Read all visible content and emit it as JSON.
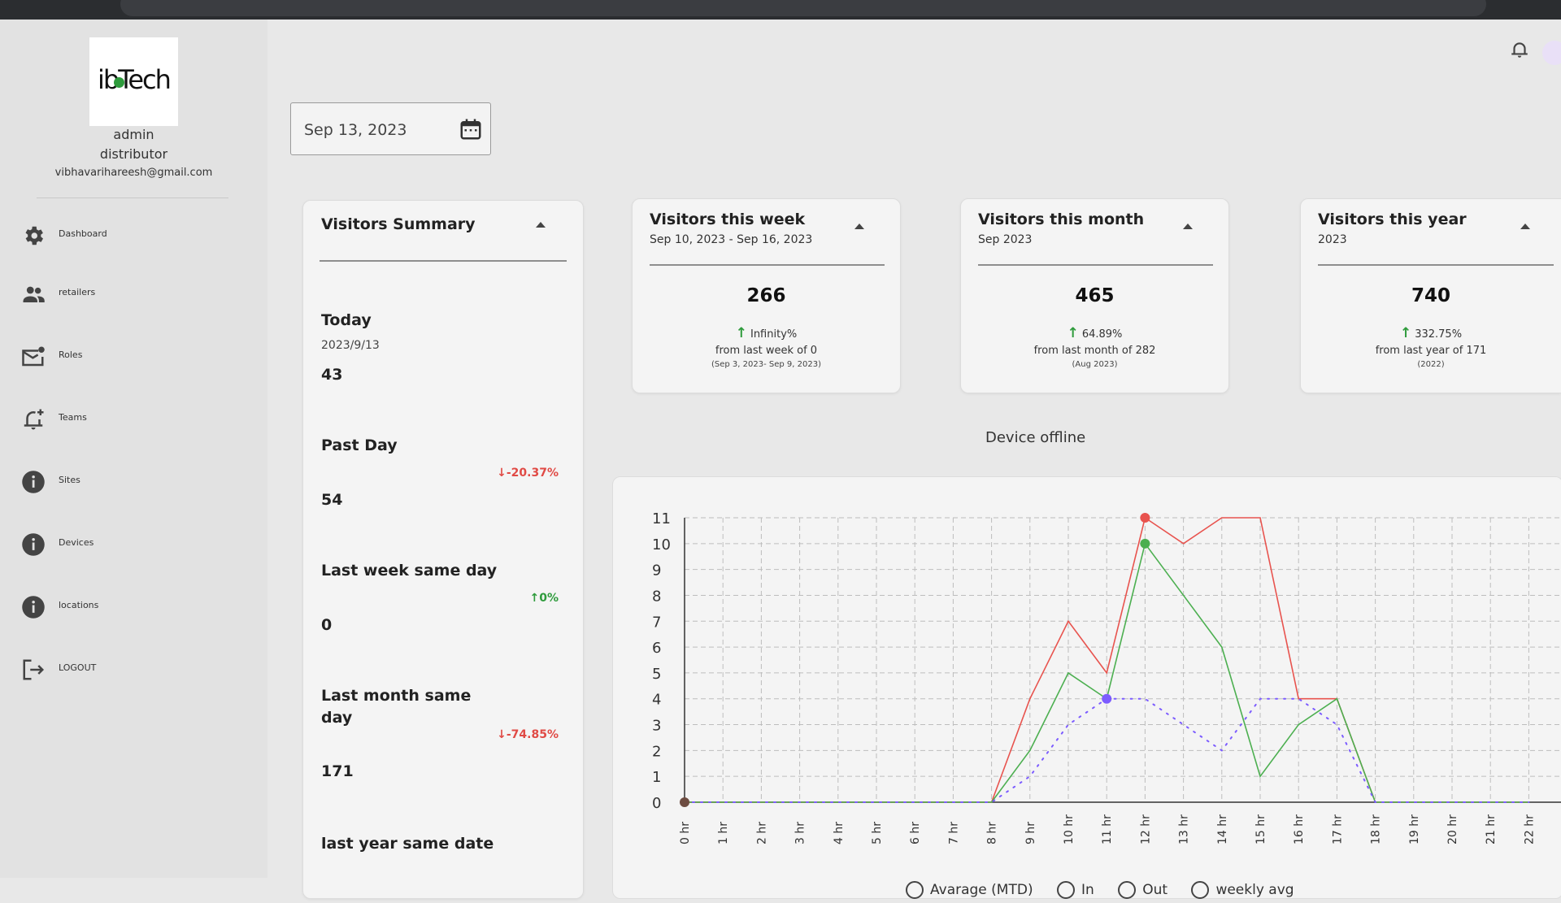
{
  "sidebar": {
    "logo_text": "ibTech",
    "user_name": "admin",
    "user_role": "distributor",
    "user_email": "vibhavarihareesh@gmail.com",
    "items": [
      {
        "label": "Dashboard",
        "icon": "gear-icon"
      },
      {
        "label": "retailers",
        "icon": "people-icon"
      },
      {
        "label": "Roles",
        "icon": "mail-badge-icon"
      },
      {
        "label": "Teams",
        "icon": "bell-plus-icon"
      },
      {
        "label": "Sites",
        "icon": "info-icon"
      },
      {
        "label": "Devices",
        "icon": "info-icon"
      },
      {
        "label": "locations",
        "icon": "info-icon"
      },
      {
        "label": "LOGOUT",
        "icon": "logout-icon"
      }
    ]
  },
  "header": {
    "date_value": "Sep 13, 2023",
    "notification_icon": "bell-icon"
  },
  "summary": {
    "title": "Visitors Summary",
    "today_label": "Today",
    "today_date": "2023/9/13",
    "today_value": "43",
    "past_day_label": "Past Day",
    "past_day_pct": "-20.37%",
    "past_day_value": "54",
    "last_week_label": "Last week same day",
    "last_week_pct": "0%",
    "last_week_value": "0",
    "last_month_label_1": "Last month same",
    "last_month_label_2": "day",
    "last_month_pct": "-74.85%",
    "last_month_value": "171",
    "last_year_label": "last year same date"
  },
  "week": {
    "title": "Visitors this week",
    "range": "Sep 10, 2023 - Sep 16, 2023",
    "value": "266",
    "pct": "Infinity%",
    "from": "from last week of  0",
    "prev_range": "(Sep 3, 2023- Sep 9, 2023)"
  },
  "month": {
    "title": "Visitors this month",
    "range": "Sep 2023",
    "value": "465",
    "pct": "64.89%",
    "from": "from last month of 282",
    "prev_range": "(Aug 2023)"
  },
  "year": {
    "title": "Visitors this year",
    "range": "2023",
    "value": "740",
    "pct": "332.75%",
    "from": "from last year of 171",
    "prev_range": "(2022)"
  },
  "chart_title": "Device offline",
  "legend": {
    "average": "Avarage (MTD)",
    "in": "In",
    "out": "Out",
    "weekly": "weekly avg"
  },
  "colors": {
    "in": "#4caf50",
    "out": "#e8534e",
    "average": "#7c5cff",
    "dot": "#6d4c41"
  },
  "chart_data": {
    "type": "line",
    "title": "Device offline",
    "x": [
      "0 hr",
      "1 hr",
      "2 hr",
      "3 hr",
      "4 hr",
      "5 hr",
      "6 hr",
      "7 hr",
      "8 hr",
      "9 hr",
      "10 hr",
      "11 hr",
      "12 hr",
      "13 hr",
      "14 hr",
      "15 hr",
      "16 hr",
      "17 hr",
      "18 hr",
      "19 hr",
      "20 hr",
      "21 hr",
      "22 hr"
    ],
    "ylim": [
      0,
      11
    ],
    "yticks": [
      0,
      1,
      2,
      3,
      4,
      5,
      6,
      7,
      8,
      9,
      10,
      11
    ],
    "series": [
      {
        "name": "Out",
        "values": [
          0,
          0,
          0,
          0,
          0,
          0,
          0,
          0,
          0,
          4,
          7,
          5,
          11,
          10,
          11,
          11,
          4,
          4,
          0,
          0,
          0,
          0,
          0
        ]
      },
      {
        "name": "In",
        "values": [
          0,
          0,
          0,
          0,
          0,
          0,
          0,
          0,
          0,
          2,
          5,
          4,
          10,
          8,
          6,
          1,
          3,
          4,
          0,
          0,
          0,
          0,
          0
        ]
      },
      {
        "name": "Avarage (MTD)",
        "values": [
          0,
          0,
          0,
          0,
          0,
          0,
          0,
          0,
          0,
          1,
          3,
          4,
          4,
          3,
          2,
          4,
          4,
          3,
          0,
          0,
          0,
          0,
          0
        ]
      }
    ],
    "grid": true
  }
}
